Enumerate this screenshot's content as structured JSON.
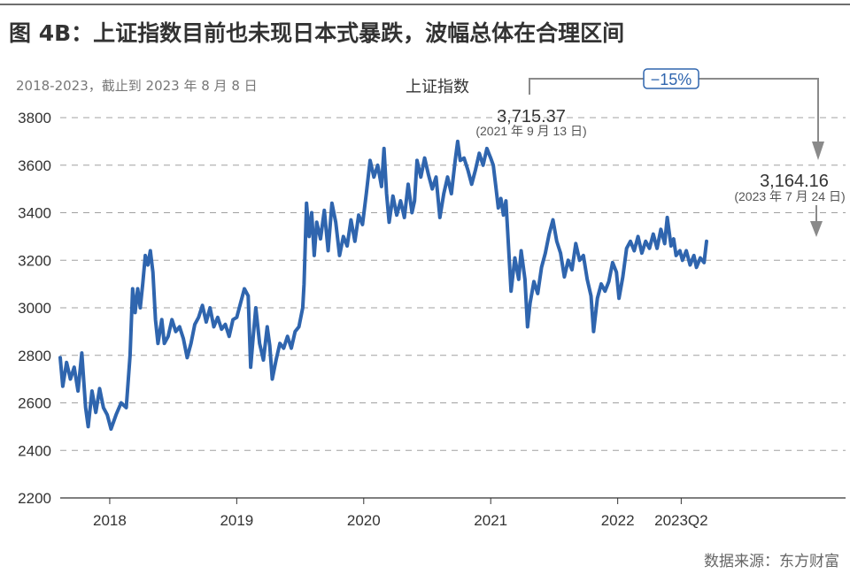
{
  "header": {
    "title": "图 4B：上证指数目前也未现日本式暴跌，波幅总体在合理区间",
    "subtitle": "2018-2023，截止到 2023 年 8 月 8 日",
    "source": "数据来源：东方财富"
  },
  "colors": {
    "line": "#2f65ae",
    "annotation": "#888888",
    "grid": "#a0a0a0",
    "axis": "#333333"
  },
  "chart_data": {
    "type": "line",
    "title": "",
    "xlabel": "",
    "ylabel": "",
    "ylim": [
      2200,
      3800
    ],
    "yticks": [
      2200,
      2400,
      2600,
      2800,
      3000,
      3200,
      3400,
      3600,
      3800
    ],
    "grid": "horizontal dashed",
    "legend": "上证指数",
    "x_tick_labels": [
      {
        "x": 2018.0,
        "label": "2018"
      },
      {
        "x": 2019.0,
        "label": "2019"
      },
      {
        "x": 2020.0,
        "label": "2020"
      },
      {
        "x": 2021.0,
        "label": "2021"
      },
      {
        "x": 2022.0,
        "label": "2022"
      },
      {
        "x": 2022.5,
        "label": "2023Q2"
      }
    ],
    "xlim": [
      2017.61,
      2023.62
    ],
    "series": [
      {
        "name": "上证指数",
        "points": [
          [
            2017.61,
            2790
          ],
          [
            2017.63,
            2670
          ],
          [
            2017.66,
            2770
          ],
          [
            2017.69,
            2700
          ],
          [
            2017.72,
            2750
          ],
          [
            2017.75,
            2650
          ],
          [
            2017.78,
            2810
          ],
          [
            2017.81,
            2580
          ],
          [
            2017.83,
            2500
          ],
          [
            2017.86,
            2650
          ],
          [
            2017.89,
            2560
          ],
          [
            2017.92,
            2660
          ],
          [
            2017.95,
            2580
          ],
          [
            2017.98,
            2550
          ],
          [
            2018.01,
            2490
          ],
          [
            2018.05,
            2550
          ],
          [
            2018.09,
            2600
          ],
          [
            2018.13,
            2580
          ],
          [
            2018.16,
            2800
          ],
          [
            2018.18,
            3080
          ],
          [
            2018.2,
            2980
          ],
          [
            2018.22,
            3080
          ],
          [
            2018.24,
            3000
          ],
          [
            2018.26,
            3100
          ],
          [
            2018.28,
            3220
          ],
          [
            2018.3,
            3180
          ],
          [
            2018.32,
            3240
          ],
          [
            2018.34,
            3150
          ],
          [
            2018.36,
            2950
          ],
          [
            2018.38,
            2850
          ],
          [
            2018.41,
            2950
          ],
          [
            2018.43,
            2850
          ],
          [
            2018.46,
            2880
          ],
          [
            2018.49,
            2950
          ],
          [
            2018.52,
            2900
          ],
          [
            2018.55,
            2920
          ],
          [
            2018.58,
            2870
          ],
          [
            2018.61,
            2790
          ],
          [
            2018.64,
            2850
          ],
          [
            2018.67,
            2930
          ],
          [
            2018.7,
            2960
          ],
          [
            2018.73,
            3010
          ],
          [
            2018.76,
            2940
          ],
          [
            2018.79,
            3000
          ],
          [
            2018.82,
            2920
          ],
          [
            2018.85,
            2960
          ],
          [
            2018.88,
            2910
          ],
          [
            2018.91,
            2930
          ],
          [
            2018.94,
            2880
          ],
          [
            2018.97,
            2950
          ],
          [
            2019.0,
            2960
          ],
          [
            2019.03,
            3020
          ],
          [
            2019.06,
            3080
          ],
          [
            2019.09,
            3050
          ],
          [
            2019.11,
            2750
          ],
          [
            2019.13,
            2880
          ],
          [
            2019.15,
            3000
          ],
          [
            2019.18,
            2850
          ],
          [
            2019.21,
            2780
          ],
          [
            2019.24,
            2920
          ],
          [
            2019.26,
            2840
          ],
          [
            2019.28,
            2700
          ],
          [
            2019.31,
            2780
          ],
          [
            2019.34,
            2850
          ],
          [
            2019.37,
            2830
          ],
          [
            2019.4,
            2880
          ],
          [
            2019.43,
            2830
          ],
          [
            2019.46,
            2900
          ],
          [
            2019.49,
            2920
          ],
          [
            2019.52,
            3000
          ],
          [
            2019.53,
            3100
          ],
          [
            2019.55,
            3440
          ],
          [
            2019.57,
            3300
          ],
          [
            2019.59,
            3400
          ],
          [
            2019.61,
            3220
          ],
          [
            2019.63,
            3360
          ],
          [
            2019.66,
            3290
          ],
          [
            2019.69,
            3410
          ],
          [
            2019.72,
            3240
          ],
          [
            2019.75,
            3440
          ],
          [
            2019.78,
            3360
          ],
          [
            2019.81,
            3220
          ],
          [
            2019.84,
            3300
          ],
          [
            2019.87,
            3260
          ],
          [
            2019.9,
            3370
          ],
          [
            2019.93,
            3280
          ],
          [
            2019.96,
            3390
          ],
          [
            2019.99,
            3350
          ],
          [
            2020.02,
            3480
          ],
          [
            2020.05,
            3620
          ],
          [
            2020.08,
            3550
          ],
          [
            2020.11,
            3600
          ],
          [
            2020.14,
            3510
          ],
          [
            2020.16,
            3670
          ],
          [
            2020.18,
            3480
          ],
          [
            2020.2,
            3360
          ],
          [
            2020.23,
            3470
          ],
          [
            2020.26,
            3390
          ],
          [
            2020.29,
            3450
          ],
          [
            2020.32,
            3380
          ],
          [
            2020.35,
            3520
          ],
          [
            2020.38,
            3400
          ],
          [
            2020.4,
            3450
          ],
          [
            2020.42,
            3620
          ],
          [
            2020.45,
            3550
          ],
          [
            2020.48,
            3630
          ],
          [
            2020.51,
            3560
          ],
          [
            2020.54,
            3500
          ],
          [
            2020.57,
            3550
          ],
          [
            2020.6,
            3380
          ],
          [
            2020.63,
            3480
          ],
          [
            2020.66,
            3550
          ],
          [
            2020.69,
            3480
          ],
          [
            2020.72,
            3620
          ],
          [
            2020.74,
            3700
          ],
          [
            2020.76,
            3620
          ],
          [
            2020.79,
            3630
          ],
          [
            2020.82,
            3580
          ],
          [
            2020.85,
            3520
          ],
          [
            2020.88,
            3580
          ],
          [
            2020.91,
            3650
          ],
          [
            2020.94,
            3600
          ],
          [
            2020.97,
            3670
          ],
          [
            2021.0,
            3630
          ],
          [
            2021.02,
            3600
          ],
          [
            2021.04,
            3510
          ],
          [
            2021.06,
            3420
          ],
          [
            2021.08,
            3460
          ],
          [
            2021.1,
            3390
          ],
          [
            2021.12,
            3450
          ],
          [
            2021.14,
            3260
          ],
          [
            2021.16,
            3070
          ],
          [
            2021.19,
            3210
          ],
          [
            2021.22,
            3120
          ],
          [
            2021.24,
            3240
          ],
          [
            2021.27,
            3120
          ],
          [
            2021.29,
            2920
          ],
          [
            2021.31,
            3020
          ],
          [
            2021.34,
            3110
          ],
          [
            2021.37,
            3060
          ],
          [
            2021.4,
            3170
          ],
          [
            2021.43,
            3230
          ],
          [
            2021.46,
            3310
          ],
          [
            2021.49,
            3370
          ],
          [
            2021.52,
            3280
          ],
          [
            2021.55,
            3230
          ],
          [
            2021.58,
            3130
          ],
          [
            2021.61,
            3200
          ],
          [
            2021.64,
            3160
          ],
          [
            2021.67,
            3270
          ],
          [
            2021.7,
            3200
          ],
          [
            2021.73,
            3220
          ],
          [
            2021.76,
            3120
          ],
          [
            2021.79,
            3050
          ],
          [
            2021.81,
            2900
          ],
          [
            2021.84,
            3040
          ],
          [
            2021.87,
            3100
          ],
          [
            2021.9,
            3070
          ],
          [
            2021.93,
            3110
          ],
          [
            2021.96,
            3190
          ],
          [
            2021.99,
            3150
          ],
          [
            2022.01,
            3040
          ],
          [
            2022.04,
            3130
          ],
          [
            2022.07,
            3250
          ],
          [
            2022.1,
            3280
          ],
          [
            2022.13,
            3240
          ],
          [
            2022.16,
            3300
          ],
          [
            2022.19,
            3230
          ],
          [
            2022.22,
            3280
          ],
          [
            2022.25,
            3250
          ],
          [
            2022.28,
            3310
          ],
          [
            2022.31,
            3250
          ],
          [
            2022.34,
            3330
          ],
          [
            2022.37,
            3270
          ],
          [
            2022.39,
            3380
          ],
          [
            2022.42,
            3260
          ],
          [
            2022.44,
            3290
          ],
          [
            2022.46,
            3220
          ],
          [
            2022.49,
            3240
          ],
          [
            2022.51,
            3200
          ],
          [
            2022.54,
            3240
          ],
          [
            2022.57,
            3180
          ],
          [
            2022.6,
            3220
          ],
          [
            2022.62,
            3170
          ],
          [
            2022.65,
            3210
          ],
          [
            2022.68,
            3190
          ],
          [
            2022.7,
            3280
          ]
        ]
      }
    ],
    "annotations": [
      {
        "label": "3,715.37",
        "date_note": "(2021 年 9 月 13 日)",
        "x": 2020.74,
        "y": 3715.37
      },
      {
        "label": "3,164.16",
        "date_note": "(2023 年 7 月 24 日)",
        "x": 2022.62,
        "y": 3164.16
      },
      {
        "label": "−15%"
      }
    ]
  }
}
